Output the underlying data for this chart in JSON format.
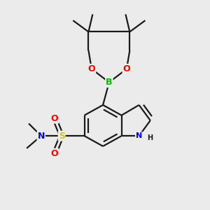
{
  "background_color": "#ebebeb",
  "bond_color": "#1a1a1a",
  "bond_width": 1.6,
  "atom_colors": {
    "B": "#00bb00",
    "O": "#ff0000",
    "N": "#0000ee",
    "S": "#cccc00",
    "H": "#1a1a1a",
    "C": "#1a1a1a"
  },
  "figsize": [
    3.0,
    3.0
  ],
  "dpi": 100,
  "xlim": [
    0,
    10
  ],
  "ylim": [
    0,
    10
  ]
}
